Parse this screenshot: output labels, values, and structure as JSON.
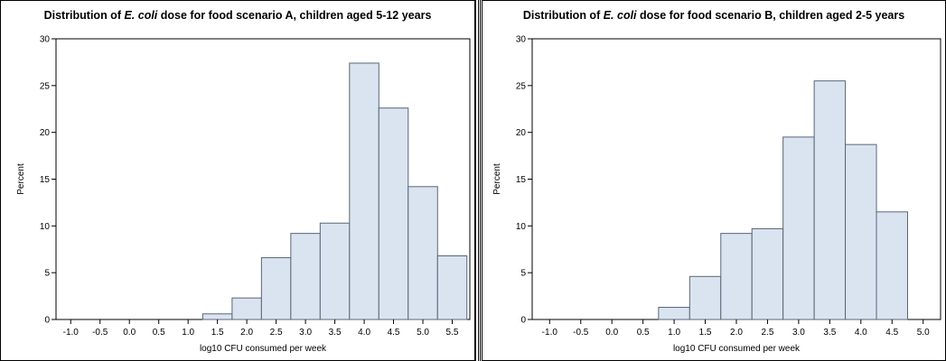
{
  "chart_data": [
    {
      "type": "bar",
      "title_prefix": "Distribution of",
      "title_italic": "E. coli",
      "title_suffix": "dose for food scenario A, children aged 5-12 years",
      "xlabel": "log10 CFU consumed per week",
      "ylabel": "Percent",
      "xlim": [
        -1.25,
        5.8
      ],
      "ylim": [
        0,
        30
      ],
      "xticks": [
        "-1.0",
        "-0.5",
        "0.0",
        "0.5",
        "1.0",
        "1.5",
        "2.0",
        "2.5",
        "3.0",
        "3.5",
        "4.0",
        "4.5",
        "5.0",
        "5.5"
      ],
      "yticks": [
        "0",
        "5",
        "10",
        "15",
        "20",
        "25",
        "30"
      ],
      "bin_width": 0.5,
      "bin_centers": [
        1.5,
        2.0,
        2.5,
        3.0,
        3.5,
        4.0,
        4.5,
        5.0,
        5.5
      ],
      "values": [
        0.6,
        2.3,
        6.6,
        9.2,
        10.3,
        27.4,
        22.6,
        14.2,
        6.8
      ],
      "bar_color": "#dae4f1",
      "edge_color": "#5a6676"
    },
    {
      "type": "bar",
      "title_prefix": "Distribution of",
      "title_italic": "E. coli",
      "title_suffix": "dose for food scenario B, children aged 2-5 years",
      "xlabel": "log10 CFU consumed per week",
      "ylabel": "Percent",
      "xlim": [
        -1.28,
        5.28
      ],
      "ylim": [
        0,
        30
      ],
      "xticks": [
        "-1.0",
        "-0.5",
        "0.0",
        "0.5",
        "1.0",
        "1.5",
        "2.0",
        "2.5",
        "3.0",
        "3.5",
        "4.0",
        "4.5",
        "5.0"
      ],
      "yticks": [
        "0",
        "5",
        "10",
        "15",
        "20",
        "25",
        "30"
      ],
      "bin_width": 0.5,
      "bin_centers": [
        1.0,
        1.5,
        2.0,
        2.5,
        3.0,
        3.5,
        4.0,
        4.5
      ],
      "values": [
        1.3,
        4.6,
        9.2,
        9.7,
        19.5,
        25.5,
        18.7,
        11.5
      ],
      "bar_color": "#dae4f1",
      "edge_color": "#5a6676"
    }
  ]
}
